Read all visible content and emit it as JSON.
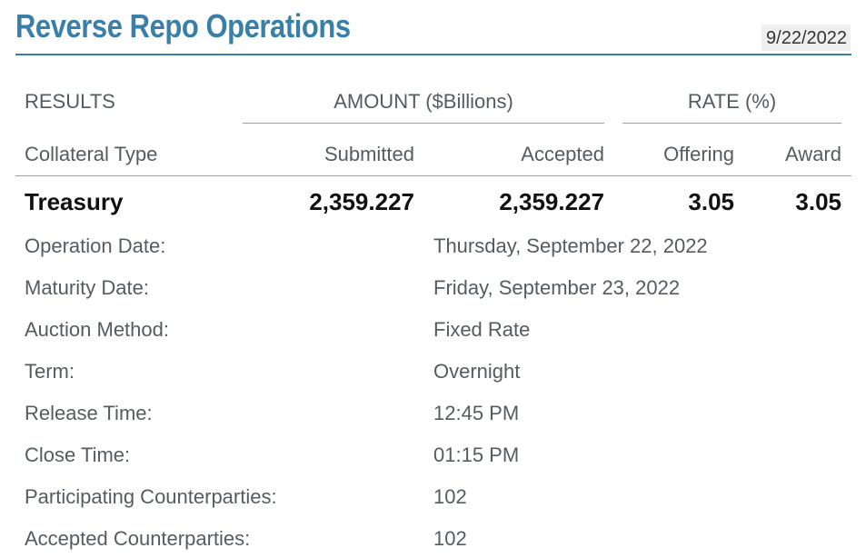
{
  "header": {
    "title": "Reverse Repo Operations",
    "date": "9/22/2022"
  },
  "table": {
    "results_label": "RESULTS",
    "amount_group": "AMOUNT ($Billions)",
    "rate_group": "RATE (%)",
    "columns": {
      "collateral_type": "Collateral Type",
      "submitted": "Submitted",
      "accepted": "Accepted",
      "offering": "Offering",
      "award": "Award"
    },
    "row": {
      "collateral_type": "Treasury",
      "submitted": "2,359.227",
      "accepted": "2,359.227",
      "offering": "3.05",
      "award": "3.05"
    }
  },
  "details": [
    {
      "label": "Operation Date:",
      "value": "Thursday, September 22, 2022"
    },
    {
      "label": "Maturity Date:",
      "value": "Friday, September 23, 2022"
    },
    {
      "label": "Auction Method:",
      "value": "Fixed Rate"
    },
    {
      "label": "Term:",
      "value": "Overnight"
    },
    {
      "label": "Release Time:",
      "value": "12:45 PM"
    },
    {
      "label": "Close Time:",
      "value": "01:15 PM"
    },
    {
      "label": "Participating Counterparties:",
      "value": "102"
    },
    {
      "label": "Accepted Counterparties:",
      "value": "102"
    }
  ],
  "colors": {
    "title": "#3a7fa7",
    "text": "#555c61",
    "bold_text": "#111111",
    "date_badge_bg": "#efefef"
  }
}
